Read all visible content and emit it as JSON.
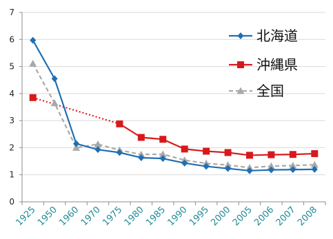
{
  "chart_data": {
    "type": "line",
    "categories": [
      "1925",
      "1950",
      "1960",
      "1970",
      "1975",
      "1980",
      "1985",
      "1990",
      "1995",
      "2000",
      "2005",
      "2006",
      "2007",
      "2008"
    ],
    "ylim": [
      0,
      7
    ],
    "yticks": [
      "0",
      "1",
      "2",
      "3",
      "4",
      "5",
      "6",
      "7"
    ],
    "grid": true,
    "legend": "top-right",
    "series": [
      {
        "name": "北海道",
        "color": "#1f6fb2",
        "marker": "diamond",
        "dash": "solid",
        "values": [
          5.97,
          4.55,
          2.15,
          1.93,
          1.82,
          1.63,
          1.6,
          1.43,
          1.31,
          1.23,
          1.15,
          1.18,
          1.19,
          1.2
        ]
      },
      {
        "name": "沖縄県",
        "color": "#d7191c",
        "marker": "square",
        "dash": "solid",
        "values": [
          3.85,
          null,
          null,
          null,
          2.88,
          2.38,
          2.31,
          1.95,
          1.87,
          1.82,
          1.72,
          1.74,
          1.75,
          1.78
        ]
      },
      {
        "name": "全国",
        "color": "#a9a9a9",
        "marker": "triangle",
        "dash": "dashed",
        "values": [
          5.11,
          3.65,
          2.0,
          2.13,
          1.91,
          1.75,
          1.76,
          1.54,
          1.42,
          1.36,
          1.26,
          1.32,
          1.34,
          1.37
        ]
      }
    ],
    "connector": {
      "series": "沖縄県",
      "color": "#e8141b",
      "style": "dotted",
      "from_category": "1925",
      "to_category": "1975"
    }
  }
}
